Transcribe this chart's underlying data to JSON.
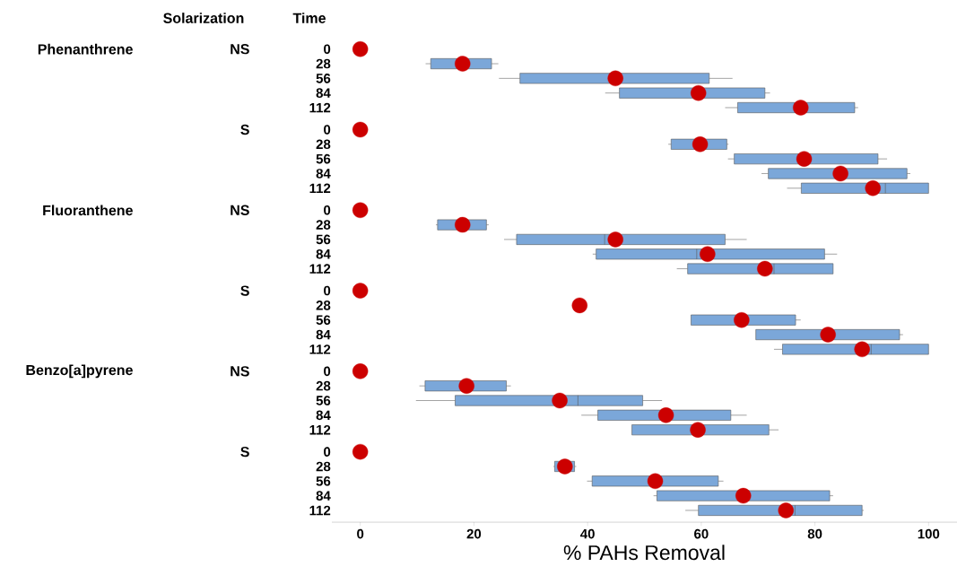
{
  "chart_data": {
    "type": "box",
    "orientation": "horizontal",
    "color": "#7ba7d9",
    "categories": [
      "0",
      "28",
      "56",
      "84",
      "112",
      "0",
      "28",
      "56",
      "84",
      "112",
      "0",
      "28",
      "56",
      "84",
      "112",
      "0",
      "28",
      "56",
      "84",
      "112",
      "0",
      "28",
      "56",
      "84",
      "112",
      "0",
      "28",
      "56",
      "84",
      "112"
    ],
    "boxes": [
      {
        "low": 0,
        "q1": 0,
        "median": 0,
        "q3": 0,
        "high": 0,
        "mean": 0
      },
      {
        "low": 11.5,
        "q1": 12.4,
        "median": 18,
        "q3": 23.1,
        "high": 24.3,
        "mean": 18
      },
      {
        "low": 24.4,
        "q1": 28.1,
        "median": 45,
        "q3": 61.4,
        "high": 65.5,
        "mean": 44.9
      },
      {
        "low": 43.1,
        "q1": 45.6,
        "median": 59.5,
        "q3": 71.2,
        "high": 72.1,
        "mean": 59.5
      },
      {
        "low": 64.2,
        "q1": 66.4,
        "median": 77.5,
        "q3": 87,
        "high": 87.6,
        "mean": 77.5
      },
      {
        "low": 0,
        "q1": 0,
        "median": 0,
        "q3": 0,
        "high": 0,
        "mean": 0
      },
      {
        "low": 54.2,
        "q1": 54.7,
        "median": 59.8,
        "q3": 64.5,
        "high": 64.8,
        "mean": 59.8
      },
      {
        "low": 64.7,
        "q1": 65.8,
        "median": 78.1,
        "q3": 91.1,
        "high": 92.7,
        "mean": 78.1
      },
      {
        "low": 70.6,
        "q1": 71.8,
        "median": 84.5,
        "q3": 96.2,
        "high": 96.8,
        "mean": 84.5
      },
      {
        "low": 75.1,
        "q1": 77.6,
        "median": 92.4,
        "q3": 100,
        "high": 100,
        "mean": 90.2
      },
      {
        "low": 0,
        "q1": 0,
        "median": 0,
        "q3": 0,
        "high": 0,
        "mean": 0
      },
      {
        "low": 13.3,
        "q1": 13.6,
        "median": 18,
        "q3": 22.2,
        "high": 22.6,
        "mean": 18
      },
      {
        "low": 25.3,
        "q1": 27.5,
        "median": 43,
        "q3": 64.2,
        "high": 68,
        "mean": 44.9
      },
      {
        "low": 40.9,
        "q1": 41.5,
        "median": 59.2,
        "q3": 81.7,
        "high": 83.9,
        "mean": 61.1
      },
      {
        "low": 55.7,
        "q1": 57.6,
        "median": 72.8,
        "q3": 83.2,
        "high": 83.2,
        "mean": 71.2
      },
      {
        "low": 0,
        "q1": 0,
        "median": 0,
        "q3": 0,
        "high": 0,
        "mean": 0
      },
      {
        "low": 38.6,
        "q1": 38.6,
        "median": 38.6,
        "q3": 38.6,
        "high": 38.6,
        "mean": 38.6
      },
      {
        "low": 58.2,
        "q1": 58.2,
        "median": 67.1,
        "q3": 76.6,
        "high": 77.5,
        "mean": 67.1
      },
      {
        "low": 69.6,
        "q1": 69.6,
        "median": 82.3,
        "q3": 94.9,
        "high": 95.5,
        "mean": 82.3
      },
      {
        "low": 72.8,
        "q1": 74.3,
        "median": 89.9,
        "q3": 100,
        "high": 100,
        "mean": 88.3
      },
      {
        "low": 0,
        "q1": 0,
        "median": 0,
        "q3": 0,
        "high": 0,
        "mean": 0
      },
      {
        "low": 10.4,
        "q1": 11.4,
        "median": 18.7,
        "q3": 25.7,
        "high": 26.5,
        "mean": 18.7
      },
      {
        "low": 9.8,
        "q1": 16.7,
        "median": 38.3,
        "q3": 49.7,
        "high": 53.1,
        "mean": 35.1
      },
      {
        "low": 38.9,
        "q1": 41.8,
        "median": 53.8,
        "q3": 65.2,
        "high": 68,
        "mean": 53.8
      },
      {
        "low": 47.8,
        "q1": 47.8,
        "median": 59.4,
        "q3": 71.9,
        "high": 73.6,
        "mean": 59.4
      },
      {
        "low": 0,
        "q1": 0,
        "median": 0,
        "q3": 0,
        "high": 0,
        "mean": 0
      },
      {
        "low": 34,
        "q1": 34.2,
        "median": 36,
        "q3": 37.7,
        "high": 38,
        "mean": 36
      },
      {
        "low": 39.9,
        "q1": 40.8,
        "median": 51.9,
        "q3": 63,
        "high": 63.9,
        "mean": 51.9
      },
      {
        "low": 51.6,
        "q1": 52.2,
        "median": 67.4,
        "q3": 82.6,
        "high": 83.2,
        "mean": 67.4
      },
      {
        "low": 57.2,
        "q1": 59.5,
        "median": 76.5,
        "q3": 88.3,
        "high": 88.6,
        "mean": 74.9
      }
    ],
    "xlabel": "% PAHs Removal",
    "xlim": [
      -5,
      105
    ],
    "xticks": [
      0,
      20,
      40,
      60,
      80,
      100
    ],
    "annotations": [
      "Solarization",
      "Time",
      "Phenanthrene",
      "NS",
      "S",
      "Fluoranthene",
      "NS",
      "S",
      "Benzo[a]pyrene",
      "NS",
      "S"
    ]
  }
}
